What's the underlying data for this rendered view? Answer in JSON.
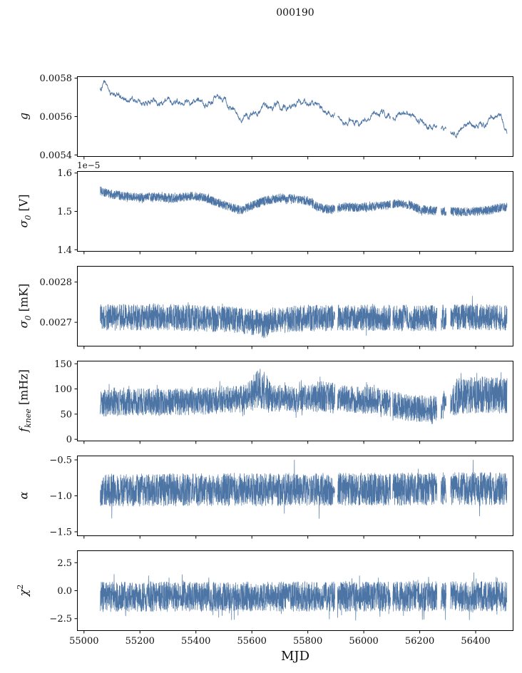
{
  "title": "000190",
  "accent": "#4c74a4",
  "background": "#ffffff",
  "x_axis": {
    "label": "MJD",
    "lim": [
      54975,
      56535
    ],
    "ticks": [
      55000,
      55200,
      55400,
      55600,
      55800,
      56000,
      56200,
      56400
    ],
    "tick_labels": [
      "55000",
      "55200",
      "55400",
      "55600",
      "55800",
      "56000",
      "56200",
      "56400"
    ]
  },
  "gaps": [
    [
      55897,
      55906
    ],
    [
      56096,
      56103
    ],
    [
      56262,
      56276
    ],
    [
      56295,
      56310
    ]
  ],
  "chart_data": [
    {
      "type": "line",
      "name": "g",
      "ylabel": {
        "base": "g",
        "sub": "",
        "sup": "",
        "rest": ""
      },
      "ylim": [
        0.00539,
        0.00581
      ],
      "yticks": [
        0.0054,
        0.0056,
        0.0058
      ],
      "ytick_labels": [
        "0.0054",
        "0.0056",
        "0.0058"
      ],
      "offset_text": "",
      "x_range": [
        55058,
        56512
      ],
      "points": 1600,
      "noise": 2e-05,
      "smooth": true,
      "lw": 0.9,
      "trend": [
        [
          55058,
          0.005745
        ],
        [
          55075,
          0.005775
        ],
        [
          55095,
          0.00572
        ],
        [
          55130,
          0.005705
        ],
        [
          55170,
          0.005685
        ],
        [
          55210,
          0.005665
        ],
        [
          55250,
          0.00568
        ],
        [
          55290,
          0.00567
        ],
        [
          55330,
          0.00569
        ],
        [
          55370,
          0.00568
        ],
        [
          55410,
          0.0057
        ],
        [
          55440,
          0.005645
        ],
        [
          55465,
          0.00569
        ],
        [
          55500,
          0.005685
        ],
        [
          55540,
          0.005625
        ],
        [
          55575,
          0.0056
        ],
        [
          55615,
          0.005605
        ],
        [
          55650,
          0.00564
        ],
        [
          55690,
          0.005665
        ],
        [
          55730,
          0.00565
        ],
        [
          55770,
          0.00567
        ],
        [
          55810,
          0.005675
        ],
        [
          55850,
          0.00564
        ],
        [
          55885,
          0.005605
        ],
        [
          55920,
          0.00557
        ],
        [
          55955,
          0.005585
        ],
        [
          55990,
          0.005555
        ],
        [
          56025,
          0.0056
        ],
        [
          56060,
          0.00562
        ],
        [
          56100,
          0.005585
        ],
        [
          56140,
          0.005625
        ],
        [
          56180,
          0.005595
        ],
        [
          56220,
          0.005545
        ],
        [
          56260,
          0.00555
        ],
        [
          56300,
          0.005535
        ],
        [
          56330,
          0.005505
        ],
        [
          56360,
          0.00556
        ],
        [
          56400,
          0.005555
        ],
        [
          56430,
          0.00554
        ],
        [
          56460,
          0.005605
        ],
        [
          56490,
          0.005595
        ],
        [
          56512,
          0.00551
        ]
      ]
    },
    {
      "type": "line",
      "name": "sigma0_V",
      "ylabel": {
        "base": "σ",
        "sub": "0",
        "sup": "",
        "rest": " [V]"
      },
      "ylim": [
        1.395,
        1.605
      ],
      "yticks": [
        1.4,
        1.5,
        1.6
      ],
      "ytick_labels": [
        "1.4",
        "1.5",
        "1.6"
      ],
      "offset_text": "1e−5",
      "x_range": [
        55058,
        56512
      ],
      "points": 3200,
      "noise": 0.012,
      "smooth": false,
      "lw": 0.7,
      "spike": 1.3,
      "spike_prob": 0.02,
      "trend": [
        [
          55058,
          1.553
        ],
        [
          55090,
          1.546
        ],
        [
          55140,
          1.54
        ],
        [
          55200,
          1.536
        ],
        [
          55260,
          1.538
        ],
        [
          55320,
          1.534
        ],
        [
          55380,
          1.54
        ],
        [
          55430,
          1.536
        ],
        [
          55470,
          1.524
        ],
        [
          55520,
          1.512
        ],
        [
          55560,
          1.503
        ],
        [
          55600,
          1.515
        ],
        [
          55650,
          1.528
        ],
        [
          55700,
          1.535
        ],
        [
          55750,
          1.533
        ],
        [
          55800,
          1.528
        ],
        [
          55840,
          1.51
        ],
        [
          55880,
          1.505
        ],
        [
          55930,
          1.512
        ],
        [
          55980,
          1.51
        ],
        [
          56030,
          1.512
        ],
        [
          56080,
          1.515
        ],
        [
          56120,
          1.521
        ],
        [
          56160,
          1.518
        ],
        [
          56200,
          1.505
        ],
        [
          56250,
          1.502
        ],
        [
          56300,
          1.5
        ],
        [
          56350,
          1.498
        ],
        [
          56400,
          1.5
        ],
        [
          56450,
          1.503
        ],
        [
          56490,
          1.51
        ],
        [
          56512,
          1.512
        ]
      ]
    },
    {
      "type": "line",
      "name": "sigma0_mK",
      "ylabel": {
        "base": "σ",
        "sub": "0",
        "sup": "",
        "rest": " [mK]"
      },
      "ylim": [
        0.00264,
        0.00284
      ],
      "yticks": [
        0.0027,
        0.0028
      ],
      "ytick_labels": [
        "0.0027",
        "0.0028"
      ],
      "offset_text": "",
      "x_range": [
        55058,
        56512
      ],
      "points": 3200,
      "noise": 3.3e-05,
      "smooth": false,
      "lw": 0.7,
      "spike": 1.7,
      "spike_prob": 0.01,
      "trend": [
        [
          55058,
          0.002712
        ],
        [
          55300,
          0.002713
        ],
        [
          55500,
          0.002708
        ],
        [
          55620,
          0.0027
        ],
        [
          55645,
          0.002692
        ],
        [
          55670,
          0.002705
        ],
        [
          55800,
          0.00271
        ],
        [
          56000,
          0.002712
        ],
        [
          56200,
          0.00271
        ],
        [
          56350,
          0.002713
        ],
        [
          56512,
          0.002712
        ]
      ]
    },
    {
      "type": "line",
      "name": "f_knee",
      "ylabel": {
        "base": "f",
        "sub": "knee",
        "sup": "",
        "rest": " [mHz]"
      },
      "ylim": [
        -4,
        156
      ],
      "yticks": [
        0,
        50,
        100,
        150
      ],
      "ytick_labels": [
        "0",
        "50",
        "100",
        "150"
      ],
      "offset_text": "",
      "x_range": [
        55058,
        56512
      ],
      "points": 3200,
      "noise": 27,
      "smooth": false,
      "lw": 0.7,
      "spike": 1.4,
      "spike_prob": 0.04,
      "clip": [
        3,
        153
      ],
      "bursts": [
        [
          55595,
          55665,
          1.45
        ],
        [
          55820,
          55900,
          1.15
        ],
        [
          56320,
          56512,
          1.35
        ]
      ],
      "trend": [
        [
          55058,
          72
        ],
        [
          55200,
          74
        ],
        [
          55400,
          75
        ],
        [
          55560,
          80
        ],
        [
          55610,
          95
        ],
        [
          55640,
          100
        ],
        [
          55670,
          82
        ],
        [
          55750,
          80
        ],
        [
          55830,
          85
        ],
        [
          55900,
          82
        ],
        [
          55980,
          78
        ],
        [
          56060,
          76
        ],
        [
          56140,
          64
        ],
        [
          56220,
          60
        ],
        [
          56280,
          62
        ],
        [
          56330,
          86
        ],
        [
          56420,
          88
        ],
        [
          56512,
          86
        ]
      ]
    },
    {
      "type": "line",
      "name": "alpha",
      "ylabel": {
        "base": "α",
        "sub": "",
        "sup": "",
        "rest": ""
      },
      "ylim": [
        -1.56,
        -0.44
      ],
      "yticks": [
        -1.5,
        -1.0,
        -0.5
      ],
      "ytick_labels": [
        "−1.5",
        "−1.0",
        "−0.5"
      ],
      "offset_text": "",
      "x_range": [
        55058,
        56512
      ],
      "points": 3200,
      "noise": 0.23,
      "smooth": false,
      "lw": 0.7,
      "spike": 2.2,
      "spike_prob": 0.008,
      "clip": [
        -1.52,
        -0.5
      ],
      "trend": [
        [
          55058,
          -0.92
        ],
        [
          55800,
          -0.91
        ],
        [
          56512,
          -0.9
        ]
      ]
    },
    {
      "type": "line",
      "name": "chi2",
      "ylabel": {
        "base": "χ",
        "sub": "",
        "sup": "2",
        "rest": ""
      },
      "ylim": [
        -3.6,
        3.6
      ],
      "yticks": [
        -2.5,
        0.0,
        2.5
      ],
      "ytick_labels": [
        "−2.5",
        "0.0",
        "2.5"
      ],
      "offset_text": "",
      "x_range": [
        55058,
        56512
      ],
      "points": 3200,
      "noise": 1.35,
      "smooth": false,
      "lw": 0.7,
      "spike": 1.6,
      "spike_prob": 0.03,
      "clip": [
        -3.25,
        2.35
      ],
      "trend": [
        [
          55058,
          -0.55
        ],
        [
          56512,
          -0.5
        ]
      ]
    }
  ]
}
